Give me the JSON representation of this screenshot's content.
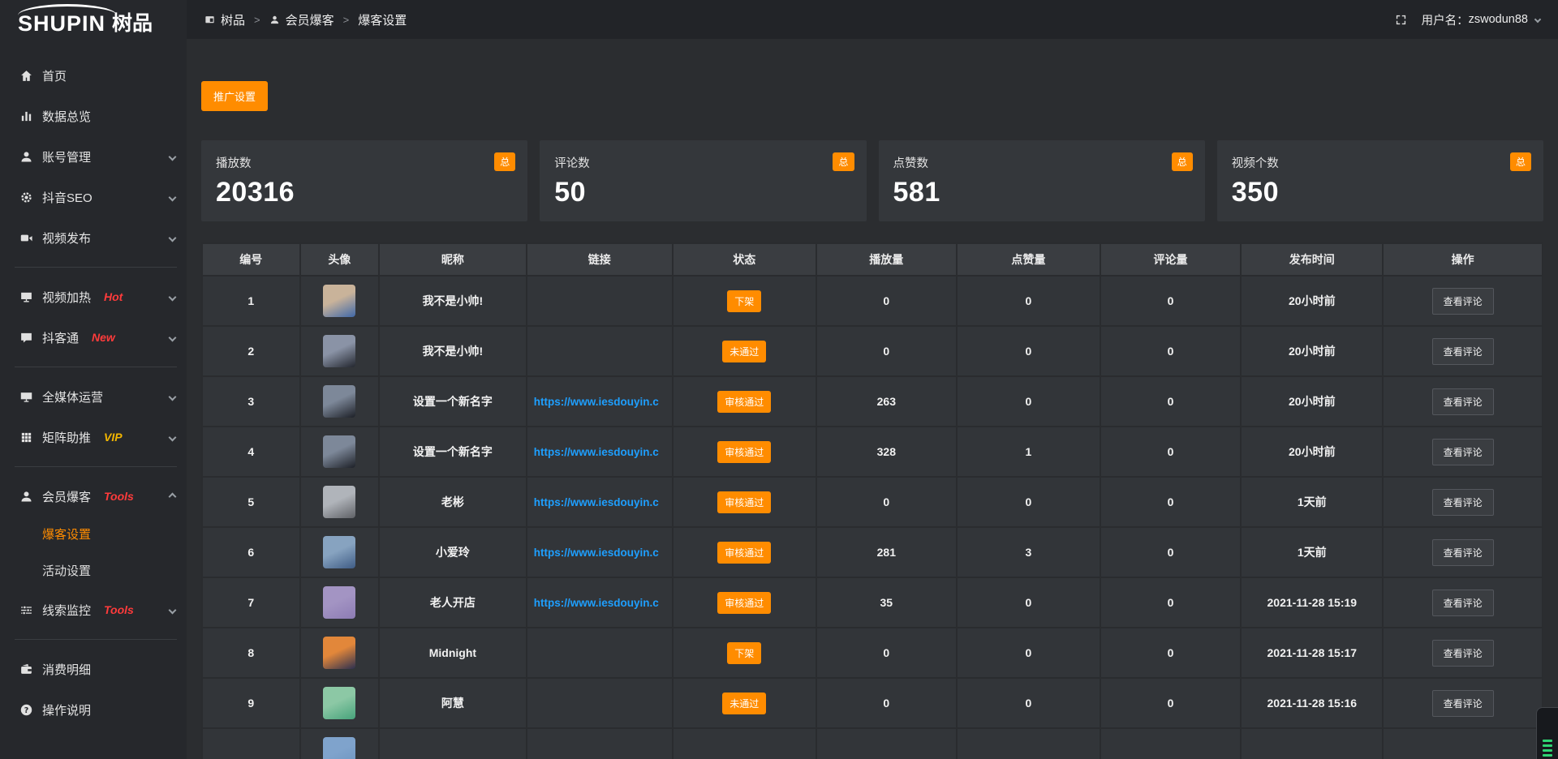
{
  "app": {
    "logo_en": "SHUPIN",
    "logo_cn": "树品"
  },
  "topbar": {
    "breadcrumb": [
      {
        "name": "shupin",
        "label": "树品",
        "icon": "screen-small-icon"
      },
      {
        "name": "member-baoke",
        "label": "会员爆客",
        "icon": "person-small-icon"
      },
      {
        "name": "baoke-settings",
        "label": "爆客设置"
      }
    ],
    "username_label": "用户名：",
    "username": "zswodun88"
  },
  "sidebar": {
    "items": [
      {
        "type": "item",
        "name": "home",
        "label": "首页",
        "icon": "home-icon"
      },
      {
        "type": "item",
        "name": "data-overview",
        "label": "数据总览",
        "icon": "chart-icon"
      },
      {
        "type": "item",
        "name": "account-manage",
        "label": "账号管理",
        "icon": "user-icon",
        "chevron": "down"
      },
      {
        "type": "item",
        "name": "douyin-seo",
        "label": "抖音SEO",
        "icon": "gear-icon",
        "chevron": "down"
      },
      {
        "type": "item",
        "name": "video-publish",
        "label": "视频发布",
        "icon": "video-icon",
        "chevron": "down"
      },
      {
        "type": "divider"
      },
      {
        "type": "item",
        "name": "video-heat",
        "label": "视频加热",
        "icon": "screen-icon",
        "tag": "Hot",
        "tag_color": "red",
        "chevron": "down"
      },
      {
        "type": "item",
        "name": "douketong",
        "label": "抖客通",
        "icon": "comment-icon",
        "tag": "New",
        "tag_color": "red",
        "chevron": "down"
      },
      {
        "type": "divider"
      },
      {
        "type": "item",
        "name": "media-operation",
        "label": "全媒体运营",
        "icon": "monitor-icon",
        "chevron": "down"
      },
      {
        "type": "item",
        "name": "matrix-boost",
        "label": "矩阵助推",
        "icon": "grid-icon",
        "tag": "VIP",
        "tag_color": "gold",
        "chevron": "down"
      },
      {
        "type": "divider"
      },
      {
        "type": "item",
        "name": "member-baoke",
        "label": "会员爆客",
        "icon": "member-icon",
        "tag": "Tools",
        "tag_color": "red",
        "chevron": "up",
        "children": [
          {
            "name": "baoke-settings",
            "label": "爆客设置",
            "active": true
          },
          {
            "name": "activity-settings",
            "label": "活动设置",
            "active": false
          }
        ]
      },
      {
        "type": "item",
        "name": "clue-monitor",
        "label": "线索监控",
        "icon": "sliders-icon",
        "tag": "Tools",
        "tag_color": "red",
        "chevron": "down"
      },
      {
        "type": "divider"
      },
      {
        "type": "item",
        "name": "consume-detail",
        "label": "消费明细",
        "icon": "wallet-icon"
      },
      {
        "type": "item",
        "name": "operation-guide",
        "label": "操作说明",
        "icon": "help-icon"
      }
    ]
  },
  "main": {
    "promo_button": "推广设置"
  },
  "cards": [
    {
      "name": "plays",
      "label": "播放数",
      "value": "20316",
      "badge": "总"
    },
    {
      "name": "comments",
      "label": "评论数",
      "value": "50",
      "badge": "总"
    },
    {
      "name": "likes",
      "label": "点赞数",
      "value": "581",
      "badge": "总"
    },
    {
      "name": "videos",
      "label": "视频个数",
      "value": "350",
      "badge": "总"
    }
  ],
  "table": {
    "columns": [
      "编号",
      "头像",
      "昵称",
      "链接",
      "状态",
      "播放量",
      "点赞量",
      "评论量",
      "发布时间",
      "操作"
    ],
    "rows": [
      {
        "index": "1",
        "nickname": "我不是小帅!",
        "link": "",
        "status": "下架",
        "plays": "0",
        "likes": "0",
        "comments": "0",
        "time": "20小时前",
        "action": "查看评论",
        "avatar_colors": [
          "#c9b39a",
          "#3f68a8"
        ]
      },
      {
        "index": "2",
        "nickname": "我不是小帅!",
        "link": "",
        "status": "未通过",
        "plays": "0",
        "likes": "0",
        "comments": "0",
        "time": "20小时前",
        "action": "查看评论",
        "avatar_colors": [
          "#8a93a6",
          "#23262e"
        ]
      },
      {
        "index": "3",
        "nickname": "设置一个新名字",
        "link": "https://www.iesdouyin.c",
        "status": "审核通过",
        "plays": "263",
        "likes": "0",
        "comments": "0",
        "time": "20小时前",
        "action": "查看评论",
        "avatar_colors": [
          "#7d8899",
          "#1d2027"
        ]
      },
      {
        "index": "4",
        "nickname": "设置一个新名字",
        "link": "https://www.iesdouyin.c",
        "status": "审核通过",
        "plays": "328",
        "likes": "1",
        "comments": "0",
        "time": "20小时前",
        "action": "查看评论",
        "avatar_colors": [
          "#7d8899",
          "#1d2027"
        ]
      },
      {
        "index": "5",
        "nickname": "老彬",
        "link": "https://www.iesdouyin.c",
        "status": "审核通过",
        "plays": "0",
        "likes": "0",
        "comments": "0",
        "time": "1天前",
        "action": "查看评论",
        "avatar_colors": [
          "#b0b4ba",
          "#5f6166"
        ]
      },
      {
        "index": "6",
        "nickname": "小爱玲",
        "link": "https://www.iesdouyin.c",
        "status": "审核通过",
        "plays": "281",
        "likes": "3",
        "comments": "0",
        "time": "1天前",
        "action": "查看评论",
        "avatar_colors": [
          "#87a3c0",
          "#3f5c85"
        ]
      },
      {
        "index": "7",
        "nickname": "老人开店",
        "link": "https://www.iesdouyin.c",
        "status": "审核通过",
        "plays": "35",
        "likes": "0",
        "comments": "0",
        "time": "2021-11-28 15:19",
        "action": "查看评论",
        "avatar_colors": [
          "#a394c3",
          "#8d7cb4"
        ]
      },
      {
        "index": "8",
        "nickname": "Midnight",
        "link": "",
        "status": "下架",
        "plays": "0",
        "likes": "0",
        "comments": "0",
        "time": "2021-11-28 15:17",
        "action": "查看评论",
        "avatar_colors": [
          "#e2873a",
          "#2c3050"
        ]
      },
      {
        "index": "9",
        "nickname": "阿慧",
        "link": "",
        "status": "未通过",
        "plays": "0",
        "likes": "0",
        "comments": "0",
        "time": "2021-11-28 15:16",
        "action": "查看评论",
        "avatar_colors": [
          "#8cc8a5",
          "#47a37b"
        ]
      },
      {
        "index": "",
        "nickname": "",
        "link": "",
        "status": "",
        "plays": "",
        "likes": "",
        "comments": "",
        "time": "",
        "action": "",
        "avatar_colors": [
          "#7fa3cc",
          "#6b93bf"
        ]
      }
    ]
  },
  "colors": {
    "accent_orange": "#ff8c00",
    "link_blue": "#1e9fff",
    "tag_red": "#ff3b3b",
    "tag_gold": "#f2b600",
    "widget_green": "#2fd573"
  }
}
